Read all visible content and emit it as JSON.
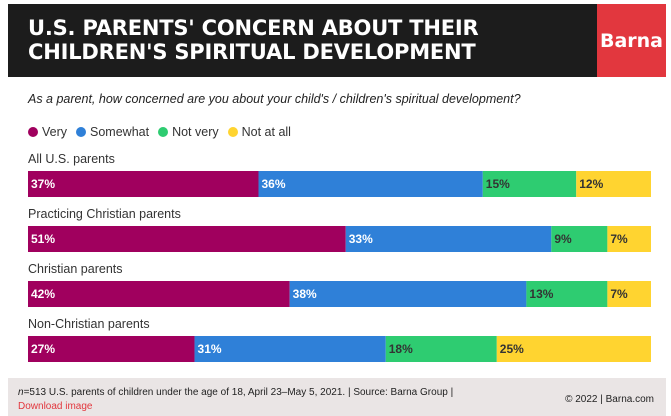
{
  "header": {
    "title": "U.S. PARENTS' CONCERN ABOUT THEIR\nCHILDREN'S SPIRITUAL DEVELOPMENT",
    "brand": "Barna"
  },
  "colors": {
    "very": "#a0005e",
    "somewhat": "#2f80d8",
    "not_very": "#2ecc71",
    "not_at_all": "#ffd430",
    "brand_red": "#e2373e"
  },
  "chart_data": {
    "type": "bar",
    "orientation": "horizontal",
    "stacked": true,
    "title": "U.S. PARENTS' CONCERN ABOUT THEIR CHILDREN'S SPIRITUAL DEVELOPMENT",
    "question": "As a parent, how concerned are you about your child's / children's spiritual development?",
    "legend_position": "top-left",
    "grid": false,
    "xlim": [
      0,
      100
    ],
    "categories": [
      "All U.S. parents",
      "Practicing Christian parents",
      "Christian parents",
      "Non-Christian parents"
    ],
    "series": [
      {
        "name": "Very",
        "values": [
          37,
          51,
          42,
          27
        ],
        "labels": [
          "37%",
          "51%",
          "42%",
          "27%"
        ]
      },
      {
        "name": "Somewhat",
        "values": [
          36,
          33,
          38,
          31
        ],
        "labels": [
          "36%",
          "33%",
          "38%",
          "31%"
        ]
      },
      {
        "name": "Not very",
        "values": [
          15,
          9,
          13,
          18
        ],
        "labels": [
          "15%",
          "9%",
          "13%",
          "18%"
        ]
      },
      {
        "name": "Not at all",
        "values": [
          12,
          7,
          7,
          25
        ],
        "labels": [
          "12%",
          "7%",
          "7%",
          "25%"
        ]
      }
    ]
  },
  "footer": {
    "n_label": "n",
    "note": "=513 U.S. parents of children under the age of 18, April 23–May 5, 2021. | Source: Barna Group |",
    "download": "Download image",
    "copyright": "© 2022 |  Barna.com"
  }
}
